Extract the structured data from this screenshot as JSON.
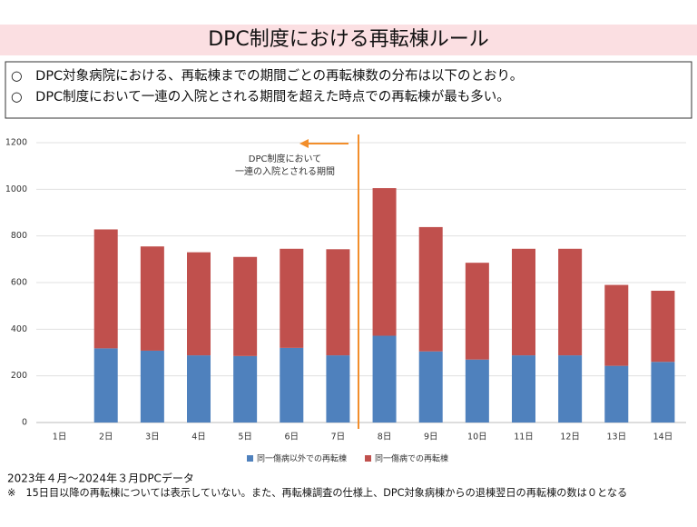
{
  "slide": {
    "title": "DPC制度における再転棟ルール",
    "bullets": [
      "○　DPC対象病院における、再転棟までの期間ごとの再転棟数の分布は以下のとおり。",
      "○　DPC制度において一連の入院とされる期間を超えた時点での再転棟が最も多い。"
    ],
    "footer": [
      "2023年４月～2024年３月DPCデータ",
      "※　15日目以降の再転棟については表示していない。また、再転棟調査の仕様上、DPC対象病棟からの退棟翌日の再転棟の数は０となる"
    ]
  },
  "chart_data": {
    "type": "bar",
    "stacked": true,
    "categories": [
      "1日",
      "2日",
      "3日",
      "4日",
      "5日",
      "6日",
      "7日",
      "8日",
      "9日",
      "10日",
      "11日",
      "12日",
      "13日",
      "14日"
    ],
    "series": [
      {
        "name": "同一傷病以外での再転棟",
        "color": "#4f81bd",
        "values": [
          0,
          318,
          308,
          288,
          285,
          320,
          288,
          372,
          305,
          270,
          288,
          288,
          243,
          260
        ]
      },
      {
        "name": "同一傷病での再転棟",
        "color": "#c0504d",
        "values": [
          0,
          510,
          447,
          442,
          425,
          425,
          455,
          633,
          533,
          415,
          457,
          457,
          347,
          305
        ]
      }
    ],
    "ylim": [
      0,
      1200
    ],
    "yticks": [
      0,
      200,
      400,
      600,
      800,
      1000,
      1200
    ],
    "grid": true,
    "legend": "bottom",
    "annotation": [
      "DPC制度において",
      "一連の入院とされる期間"
    ]
  }
}
